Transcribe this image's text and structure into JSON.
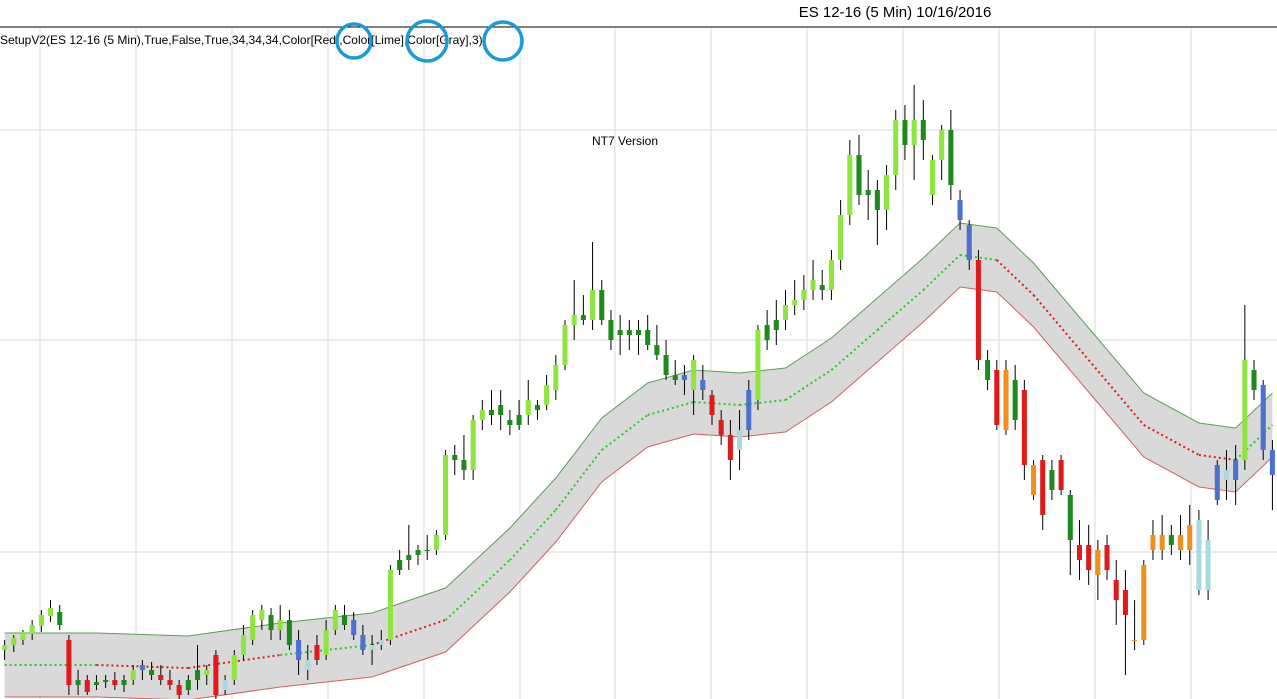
{
  "chart_data": {
    "type": "candlestick",
    "title": "ES 12-16 (5 Min)  10/16/2016",
    "subtitle": "SetupV2(ES 12-16 (5 Min),True,False,True,34,34,34,Color[Red],Color[Lime],Color[Gray],3)",
    "annotation": "NT7 Version",
    "xlim": [
      -0.5,
      138.5
    ],
    "ylim": [
      0,
      672
    ],
    "open": [
      50,
      55,
      60,
      66,
      74,
      84,
      88,
      60,
      15,
      20,
      15,
      18,
      20,
      15,
      20,
      30,
      30,
      25,
      20,
      15,
      10,
      20,
      25,
      45,
      10,
      20,
      45,
      60,
      80,
      85,
      70,
      80,
      60,
      40,
      55,
      45,
      70,
      75,
      80,
      65,
      50,
      55,
      60,
      130,
      140,
      145,
      150,
      150,
      165,
      245,
      240,
      230,
      280,
      290,
      285,
      280,
      275,
      285,
      290,
      295,
      310,
      335,
      375,
      385,
      380,
      410,
      380,
      365,
      370,
      365,
      370,
      355,
      345,
      325,
      320,
      310,
      320,
      305,
      280,
      265,
      250,
      270,
      300,
      360,
      370,
      380,
      395,
      400,
      410,
      415,
      410,
      440,
      485,
      545,
      505,
      510,
      490,
      525,
      580,
      555,
      580,
      505,
      540,
      570,
      500,
      475,
      440,
      340,
      330,
      330,
      320,
      310,
      235,
      240,
      230,
      240,
      205,
      155,
      155,
      150,
      155,
      120,
      110,
      60,
      60,
      150,
      165,
      155,
      150,
      150,
      180,
      110,
      200,
      230,
      220,
      240,
      330,
      315,
      250
    ],
    "high": [
      60,
      65,
      70,
      80,
      90,
      100,
      95,
      65,
      30,
      25,
      25,
      25,
      28,
      25,
      35,
      40,
      38,
      35,
      30,
      20,
      25,
      55,
      35,
      50,
      25,
      50,
      75,
      90,
      95,
      92,
      95,
      90,
      70,
      55,
      65,
      80,
      95,
      95,
      88,
      75,
      65,
      70,
      135,
      150,
      175,
      155,
      165,
      170,
      250,
      255,
      265,
      285,
      300,
      310,
      310,
      290,
      300,
      320,
      300,
      325,
      345,
      380,
      420,
      405,
      458,
      420,
      390,
      385,
      380,
      380,
      385,
      375,
      360,
      340,
      335,
      345,
      335,
      310,
      290,
      280,
      290,
      320,
      375,
      390,
      400,
      410,
      420,
      425,
      440,
      430,
      450,
      500,
      560,
      565,
      530,
      520,
      535,
      590,
      595,
      615,
      600,
      545,
      575,
      590,
      510,
      480,
      450,
      350,
      340,
      340,
      335,
      320,
      240,
      245,
      240,
      245,
      210,
      180,
      175,
      160,
      165,
      140,
      130,
      100,
      140,
      180,
      185,
      175,
      185,
      195,
      190,
      180,
      240,
      250,
      255,
      395,
      340,
      320,
      260
    ],
    "low": [
      40,
      48,
      55,
      60,
      68,
      78,
      70,
      5,
      5,
      5,
      10,
      12,
      10,
      8,
      15,
      20,
      20,
      15,
      10,
      0,
      5,
      10,
      15,
      0,
      5,
      15,
      40,
      55,
      70,
      60,
      60,
      50,
      25,
      20,
      35,
      40,
      65,
      70,
      60,
      45,
      35,
      50,
      55,
      125,
      130,
      135,
      140,
      145,
      160,
      225,
      220,
      220,
      270,
      275,
      270,
      265,
      270,
      275,
      280,
      290,
      300,
      330,
      360,
      375,
      370,
      375,
      350,
      345,
      350,
      345,
      350,
      340,
      320,
      315,
      305,
      285,
      300,
      275,
      255,
      220,
      230,
      260,
      290,
      350,
      355,
      370,
      385,
      390,
      400,
      400,
      400,
      430,
      475,
      495,
      480,
      455,
      470,
      510,
      540,
      520,
      540,
      495,
      520,
      500,
      470,
      430,
      330,
      310,
      270,
      265,
      270,
      220,
      200,
      170,
      200,
      205,
      125,
      120,
      115,
      100,
      120,
      75,
      25,
      50,
      55,
      140,
      140,
      145,
      140,
      135,
      105,
      100,
      195,
      200,
      195,
      230,
      300,
      240,
      190
    ],
    "close": [
      55,
      62,
      68,
      75,
      85,
      92,
      75,
      15,
      20,
      8,
      18,
      20,
      15,
      20,
      30,
      35,
      25,
      20,
      15,
      5,
      20,
      30,
      30,
      5,
      20,
      45,
      65,
      85,
      90,
      70,
      80,
      55,
      40,
      30,
      40,
      70,
      90,
      85,
      65,
      50,
      55,
      60,
      130,
      140,
      145,
      150,
      150,
      165,
      245,
      240,
      230,
      280,
      290,
      285,
      295,
      275,
      285,
      300,
      295,
      315,
      335,
      375,
      385,
      380,
      410,
      380,
      360,
      370,
      365,
      370,
      355,
      345,
      325,
      320,
      325,
      340,
      310,
      285,
      265,
      240,
      270,
      310,
      370,
      375,
      380,
      395,
      400,
      410,
      420,
      410,
      440,
      485,
      545,
      505,
      510,
      490,
      525,
      580,
      555,
      580,
      560,
      540,
      570,
      515,
      480,
      440,
      340,
      320,
      275,
      270,
      280,
      235,
      205,
      185,
      210,
      210,
      160,
      140,
      130,
      125,
      130,
      100,
      85,
      60,
      135,
      165,
      150,
      165,
      165,
      175,
      110,
      160,
      235,
      220,
      240,
      340,
      310,
      250,
      225
    ],
    "colors": [
      "#8ee53f",
      "#8ee53f",
      "#8ee53f",
      "#8ee53f",
      "#8ee53f",
      "#8ee53f",
      "#1e8a1e",
      "#e01a1a",
      "#1e8a1e",
      "#e01a1a",
      "#1e8a1e",
      "#1e8a1e",
      "#e01a1a",
      "#1e8a1e",
      "#8ee53f",
      "#4a70d0",
      "#1e8a1e",
      "#e01a1a",
      "#e01a1a",
      "#e01a1a",
      "#1e8a1e",
      "#1e8a1e",
      "#8ee53f",
      "#e01a1a",
      "#a8d8e0",
      "#8ee53f",
      "#8ee53f",
      "#8ee53f",
      "#8ee53f",
      "#1e8a1e",
      "#8ee53f",
      "#1e8a1e",
      "#4a70d0",
      "#a8d8e0",
      "#e01a1a",
      "#8ee53f",
      "#8ee53f",
      "#1e8a1e",
      "#4a70d0",
      "#4a70d0",
      "#a8d8e0",
      "#a8d8e0",
      "#8ee53f",
      "#1e8a1e",
      "#1e8a1e",
      "#1e8a1e",
      "#1e8a1e",
      "#8ee53f",
      "#8ee53f",
      "#1e8a1e",
      "#1e8a1e",
      "#8ee53f",
      "#8ee53f",
      "#1e8a1e",
      "#1e8a1e",
      "#1e8a1e",
      "#1e8a1e",
      "#8ee53f",
      "#1e8a1e",
      "#8ee53f",
      "#8ee53f",
      "#8ee53f",
      "#8ee53f",
      "#1e8a1e",
      "#8ee53f",
      "#1e8a1e",
      "#1e8a1e",
      "#1e8a1e",
      "#1e8a1e",
      "#1e8a1e",
      "#1e8a1e",
      "#1e8a1e",
      "#1e8a1e",
      "#1e8a1e",
      "#4a70d0",
      "#8ee53f",
      "#4a70d0",
      "#e01a1a",
      "#e01a1a",
      "#e01a1a",
      "#a8d8e0",
      "#4a70d0",
      "#8ee53f",
      "#1e8a1e",
      "#1e8a1e",
      "#8ee53f",
      "#8ee53f",
      "#8ee53f",
      "#8ee53f",
      "#1e8a1e",
      "#8ee53f",
      "#8ee53f",
      "#8ee53f",
      "#1e8a1e",
      "#1e8a1e",
      "#1e8a1e",
      "#8ee53f",
      "#8ee53f",
      "#1e8a1e",
      "#8ee53f",
      "#1e8a1e",
      "#8ee53f",
      "#8ee53f",
      "#1e8a1e",
      "#4a70d0",
      "#4a70d0",
      "#e01a1a",
      "#1e8a1e",
      "#e01a1a",
      "#f0901c",
      "#1e8a1e",
      "#e01a1a",
      "#f0901c",
      "#e01a1a",
      "#1e8a1e",
      "#e01a1a",
      "#1e8a1e",
      "#e01a1a",
      "#e01a1a",
      "#f0901c",
      "#e01a1a",
      "#e01a1a",
      "#e01a1a",
      "#f0901c",
      "#f0901c",
      "#f0901c",
      "#f0901c",
      "#1e8a1e",
      "#f0901c",
      "#f0901c",
      "#a8d8e0",
      "#a8d8e0",
      "#4a70d0",
      "#a8d8e0",
      "#4a70d0",
      "#8ee53f",
      "#1e8a1e",
      "#4a70d0",
      "#4a70d0"
    ],
    "band": {
      "x": [
        0,
        10,
        20,
        30,
        40,
        48,
        55,
        60,
        65,
        70,
        75,
        80,
        85,
        90,
        95,
        100,
        104,
        108,
        112,
        118,
        124,
        130,
        134,
        138
      ],
      "mid": [
        35,
        35,
        32,
        45,
        55,
        80,
        140,
        190,
        250,
        285,
        298,
        295,
        300,
        330,
        370,
        410,
        445,
        440,
        405,
        340,
        275,
        245,
        240,
        275
      ],
      "upper": [
        67,
        67,
        64,
        77,
        87,
        112,
        172,
        222,
        282,
        317,
        330,
        327,
        332,
        362,
        402,
        442,
        477,
        472,
        437,
        372,
        307,
        277,
        272,
        307
      ],
      "lower": [
        3,
        3,
        0,
        13,
        23,
        48,
        108,
        158,
        218,
        253,
        266,
        263,
        268,
        298,
        338,
        378,
        413,
        408,
        373,
        308,
        243,
        213,
        208,
        243
      ],
      "mid_colors": [
        "#22cc22",
        "#e01a1a",
        "#e01a1a",
        "#22cc22",
        "#e01a1a",
        "#22cc22",
        "#22cc22",
        "#22cc22",
        "#22cc22",
        "#22cc22",
        "#22cc22",
        "#22cc22",
        "#22cc22",
        "#22cc22",
        "#22cc22",
        "#22cc22",
        "#22cc22",
        "#e01a1a",
        "#e01a1a",
        "#e01a1a",
        "#e01a1a",
        "#e01a1a",
        "#22cc22",
        "#22cc22"
      ],
      "upper_color": "#5a9e5a",
      "lower_color": "#d06060",
      "fill": "#d9d9d9"
    }
  }
}
